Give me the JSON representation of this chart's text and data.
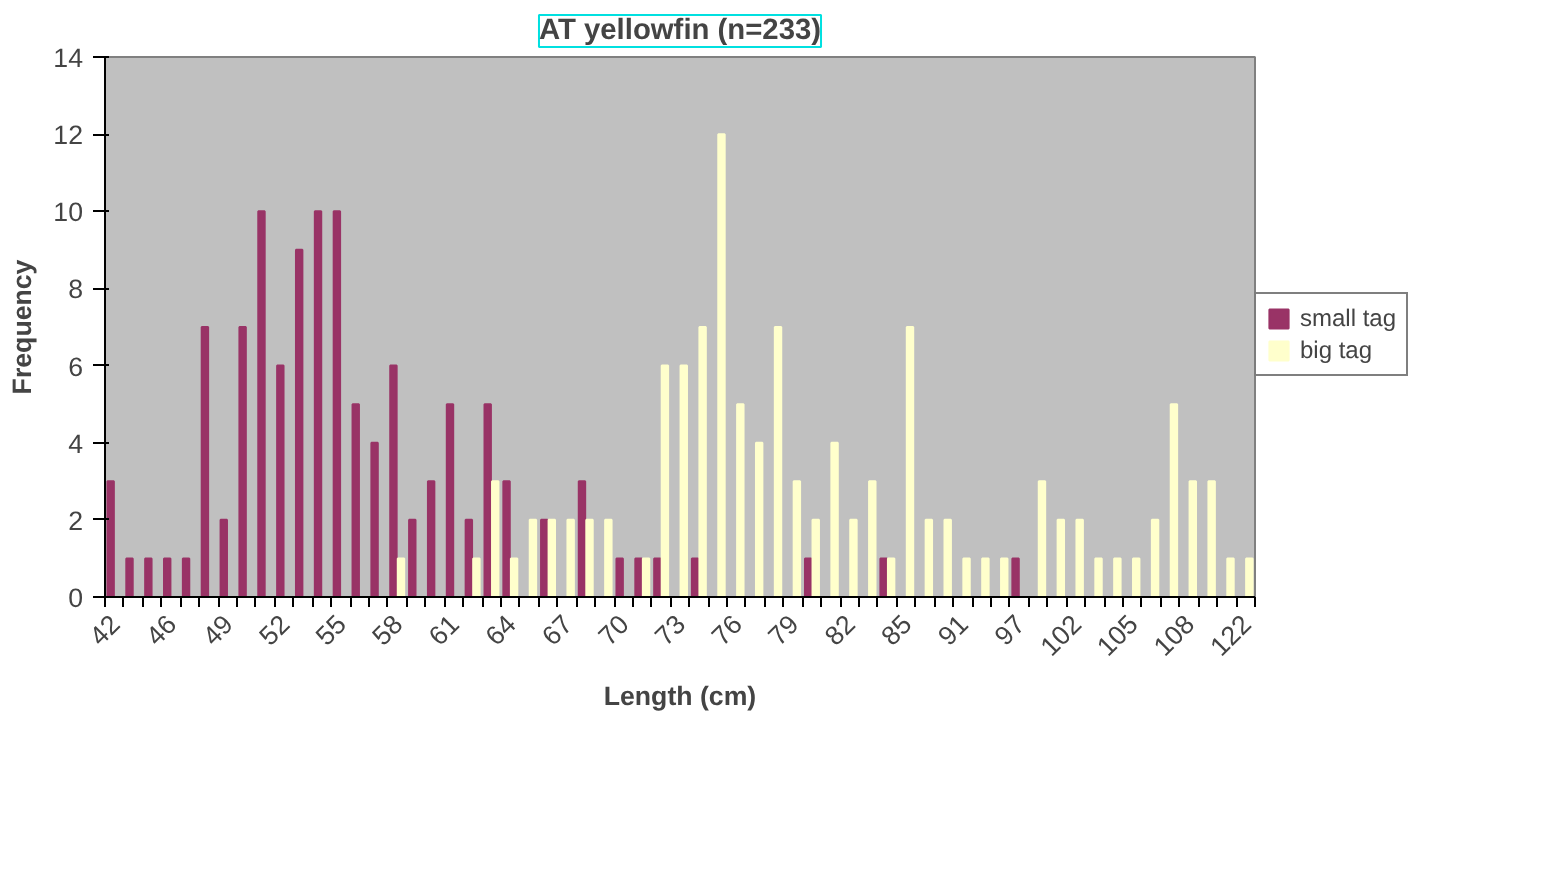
{
  "chart_data": {
    "type": "bar",
    "title": "AT yellowfin (n=233)",
    "xlabel": "Length (cm)",
    "ylabel": "Frequency",
    "categories": [
      "42",
      null,
      null,
      "46",
      null,
      null,
      "49",
      null,
      null,
      "52",
      null,
      null,
      "55",
      null,
      null,
      "58",
      null,
      null,
      "61",
      null,
      null,
      "64",
      null,
      null,
      "67",
      null,
      null,
      "70",
      null,
      null,
      "73",
      null,
      null,
      "76",
      null,
      null,
      "79",
      null,
      null,
      "82",
      null,
      null,
      "85",
      null,
      null,
      "91",
      null,
      null,
      "97",
      null,
      null,
      "102",
      null,
      null,
      "105",
      null,
      null,
      "108",
      null,
      null,
      "122"
    ],
    "series": [
      {
        "name": "small tag",
        "color": "#993366",
        "values": [
          3,
          1,
          1,
          1,
          1,
          7,
          2,
          7,
          10,
          6,
          9,
          10,
          10,
          5,
          4,
          6,
          2,
          3,
          5,
          2,
          5,
          3,
          0,
          2,
          0,
          3,
          0,
          1,
          1,
          1,
          0,
          1,
          0,
          0,
          0,
          0,
          0,
          1,
          0,
          0,
          0,
          1,
          0,
          0,
          0,
          0,
          0,
          0,
          1,
          0,
          0,
          0,
          0,
          0,
          0,
          0,
          0,
          0,
          0,
          0,
          0
        ]
      },
      {
        "name": "big tag",
        "color": "#ffffcc",
        "values": [
          0,
          0,
          0,
          0,
          0,
          0,
          0,
          0,
          0,
          0,
          0,
          0,
          0,
          0,
          0,
          1,
          0,
          0,
          0,
          1,
          3,
          1,
          2,
          2,
          2,
          2,
          2,
          0,
          1,
          6,
          6,
          7,
          12,
          5,
          4,
          7,
          3,
          2,
          4,
          2,
          3,
          1,
          7,
          2,
          2,
          1,
          1,
          1,
          0,
          3,
          2,
          2,
          1,
          1,
          1,
          2,
          5,
          3,
          3,
          1,
          1
        ]
      }
    ],
    "ylim": [
      0,
      14
    ],
    "yticks": [
      0,
      2,
      4,
      6,
      8,
      10,
      12,
      14
    ],
    "grid": false,
    "legend": "right"
  }
}
